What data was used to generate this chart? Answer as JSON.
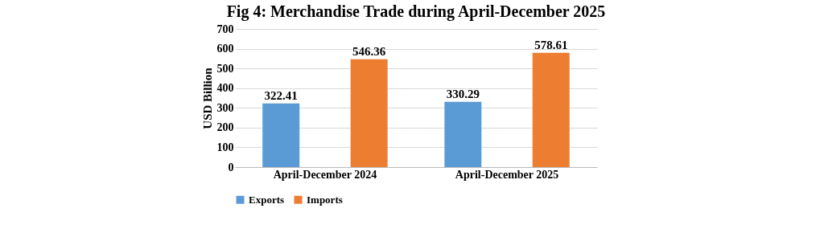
{
  "chart_data": {
    "type": "bar",
    "title": "Fig 4: Merchandise Trade during April-December 2025",
    "ylabel": "USD Billion",
    "categories": [
      "April-December 2024",
      "April-December 2025"
    ],
    "series": [
      {
        "name": "Exports",
        "color": "#5b9bd5",
        "values": [
          322.41,
          330.29
        ]
      },
      {
        "name": "Imports",
        "color": "#ed7d31",
        "values": [
          546.36,
          578.61
        ]
      }
    ],
    "ylim": [
      0,
      700
    ],
    "yticks": [
      0,
      100,
      200,
      300,
      400,
      500,
      600,
      700
    ],
    "grid": "y",
    "legend": "bottom",
    "data_labels": true
  }
}
